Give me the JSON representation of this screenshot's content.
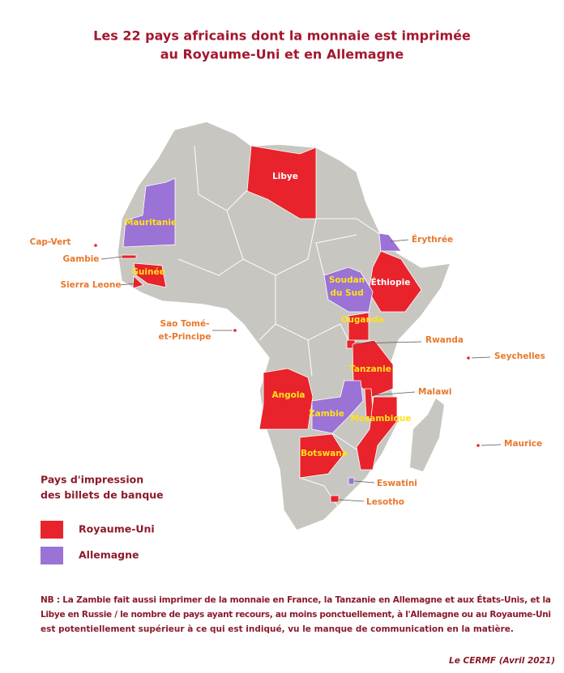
{
  "title": [
    "Les 22 pays africains dont la monnaie est imprimée",
    "au Royaume-Uni et en Allemagne"
  ],
  "legend": {
    "title": [
      "Pays d'impression",
      "des billets de banque"
    ],
    "items": [
      {
        "label": "Royaume-Uni",
        "color": "#e8232b",
        "countries": [
          [
            "Libye"
          ],
          [
            "Cap-Vert"
          ],
          [
            "Gambie"
          ],
          [
            "Guinée"
          ],
          [
            "Sierra Leone"
          ],
          [
            "Sao Tomé-",
            "et-Principe"
          ],
          [
            "Éthiopie"
          ],
          [
            "Ouganda"
          ],
          [
            "Rwanda"
          ],
          [
            "Tanzanie"
          ],
          [
            "Angola"
          ],
          [
            "Malawi"
          ],
          [
            "Mozambique"
          ],
          [
            "Botswana"
          ],
          [
            "Lesotho"
          ],
          [
            "Seychelles"
          ],
          [
            "Maurice"
          ]
        ]
      },
      {
        "label": "Allemagne",
        "color": "#9b72d6",
        "countries": [
          [
            "Mauritanie"
          ],
          [
            "Érythrée"
          ],
          [
            "Soudan",
            "du Sud"
          ],
          [
            "Zambie"
          ],
          [
            "Eswatini"
          ]
        ]
      }
    ]
  },
  "note": [
    "NB : La Zambie fait aussi imprimer de la monnaie en France, la Tanzanie en Allemagne et aux États-Unis, et la",
    "Libye en Russie / le nombre de pays ayant recours, au moins ponctuellement, à l'Allemagne ou au Royaume-Uni",
    "est potentiellement supérieur à ce qui est indiqué, vu le manque de communication en la matière."
  ],
  "credit": "Le CERMF (Avril 2021)"
}
